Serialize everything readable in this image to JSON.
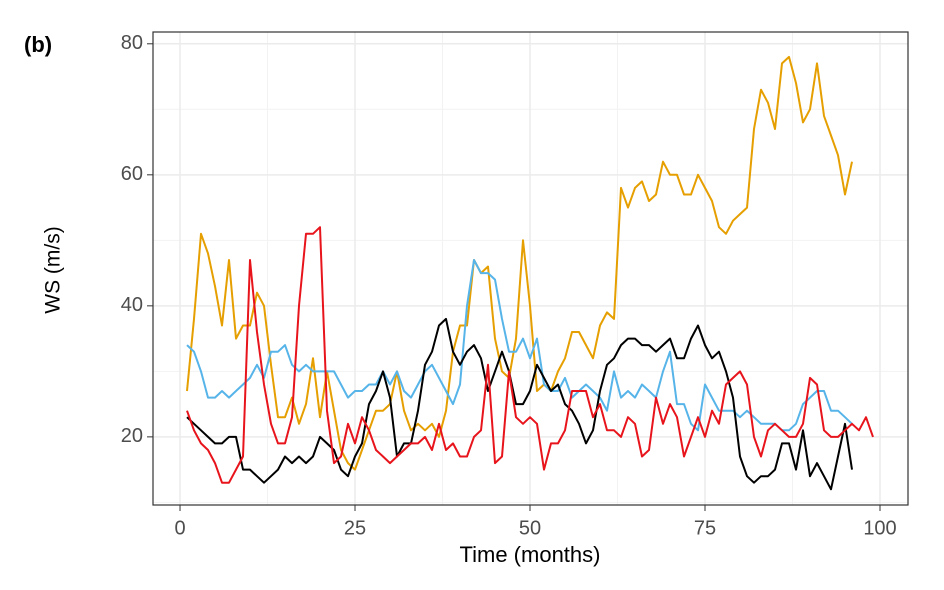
{
  "chart_data": {
    "type": "line",
    "panel_label": "(b)",
    "xlabel": "Time (months)",
    "ylabel": "WS (m/s)",
    "x": [
      1,
      2,
      3,
      4,
      5,
      6,
      7,
      8,
      9,
      10,
      11,
      12,
      13,
      14,
      15,
      16,
      17,
      18,
      19,
      20,
      21,
      22,
      23,
      24,
      25,
      26,
      27,
      28,
      29,
      30,
      31,
      32,
      33,
      34,
      35,
      36,
      37,
      38,
      39,
      40,
      41,
      42,
      43,
      44,
      45,
      46,
      47,
      48,
      49,
      50,
      51,
      52,
      53,
      54,
      55,
      56,
      57,
      58,
      59,
      60,
      61,
      62,
      63,
      64,
      65,
      66,
      67,
      68,
      69,
      70,
      71,
      72,
      73,
      74,
      75,
      76,
      77,
      78,
      79,
      80,
      81,
      82,
      83,
      84,
      85,
      86,
      87,
      88,
      89,
      90,
      91,
      92,
      93,
      94,
      95,
      96,
      97,
      98,
      99
    ],
    "series": [
      {
        "color": "#E69F00",
        "values": [
          27,
          38,
          51,
          48,
          43,
          37,
          47,
          35,
          37,
          37,
          42,
          40,
          31,
          23,
          23,
          26,
          22,
          25,
          32,
          23,
          30,
          24,
          18,
          16,
          15,
          18,
          21,
          24,
          24,
          25,
          30,
          24,
          21,
          22,
          21,
          22,
          20,
          24,
          33,
          37,
          37,
          47,
          45,
          46,
          35,
          30,
          29,
          35,
          50,
          40,
          27,
          28,
          27,
          30,
          32,
          36,
          36,
          34,
          32,
          37,
          39,
          38,
          58,
          55,
          58,
          59,
          56,
          57,
          62,
          60,
          60,
          57,
          57,
          60,
          58,
          56,
          52,
          51,
          53,
          54,
          55,
          67,
          73,
          71,
          67,
          77,
          78,
          74,
          68,
          70,
          77,
          69,
          66,
          63,
          57,
          62,
          null,
          null,
          null
        ]
      },
      {
        "color": "#56B4E9",
        "values": [
          34,
          33,
          30,
          26,
          26,
          27,
          26,
          27,
          28,
          29,
          31,
          29,
          33,
          33,
          34,
          31,
          30,
          31,
          30,
          30,
          30,
          30,
          28,
          26,
          27,
          27,
          28,
          28,
          30,
          28,
          30,
          27,
          26,
          28,
          30,
          31,
          29,
          27,
          25,
          28,
          40,
          47,
          45,
          45,
          44,
          38,
          33,
          33,
          35,
          32,
          35,
          28,
          27,
          27,
          29,
          26,
          27,
          28,
          27,
          26,
          24,
          30,
          26,
          27,
          26,
          28,
          27,
          26,
          30,
          33,
          25,
          25,
          22,
          21,
          28,
          26,
          24,
          24,
          24,
          23,
          24,
          23,
          22,
          22,
          22,
          21,
          21,
          22,
          25,
          26,
          27,
          27,
          24,
          24,
          23,
          22,
          null,
          null,
          null
        ]
      },
      {
        "color": "#000000",
        "values": [
          23,
          22,
          21,
          20,
          19,
          19,
          20,
          20,
          15,
          15,
          14,
          13,
          14,
          15,
          17,
          16,
          17,
          16,
          17,
          20,
          19,
          18,
          15,
          14,
          17,
          19,
          25,
          27,
          30,
          26,
          17,
          19,
          19,
          24,
          31,
          33,
          37,
          38,
          33,
          31,
          33,
          34,
          32,
          27,
          30,
          33,
          30,
          25,
          25,
          27,
          31,
          29,
          27,
          28,
          25,
          24,
          22,
          19,
          21,
          27,
          31,
          32,
          34,
          35,
          35,
          34,
          34,
          33,
          34,
          35,
          32,
          32,
          35,
          37,
          34,
          32,
          33,
          30,
          26,
          17,
          14,
          13,
          14,
          14,
          15,
          19,
          19,
          15,
          21,
          14,
          16,
          14,
          12,
          17,
          22,
          15,
          null,
          null,
          null
        ]
      },
      {
        "color": "#E8141C",
        "values": [
          24,
          21,
          19,
          18,
          16,
          13,
          13,
          15,
          17,
          47,
          36,
          28,
          22,
          19,
          19,
          23,
          40,
          51,
          51,
          52,
          24,
          16,
          17,
          22,
          19,
          23,
          21,
          18,
          17,
          16,
          17,
          18,
          19,
          19,
          20,
          18,
          22,
          18,
          19,
          17,
          17,
          20,
          21,
          31,
          16,
          17,
          30,
          23,
          22,
          23,
          22,
          15,
          19,
          19,
          21,
          27,
          27,
          27,
          23,
          25,
          21,
          21,
          20,
          23,
          22,
          17,
          18,
          26,
          22,
          25,
          23,
          17,
          20,
          23,
          20,
          24,
          22,
          28,
          29,
          30,
          28,
          20,
          17,
          21,
          22,
          21,
          20,
          20,
          22,
          29,
          28,
          21,
          20,
          20,
          21,
          22,
          21,
          23,
          20
        ]
      }
    ],
    "xlim": [
      -3.86,
      104
    ],
    "ylim": [
      9.6,
      81.8
    ],
    "xticks": [
      0,
      25,
      50,
      75,
      100
    ],
    "yticks": [
      20,
      40,
      60,
      80
    ],
    "xminor": [
      12.5,
      37.5,
      62.5,
      87.5
    ],
    "yminor": [
      10,
      30,
      50,
      70
    ],
    "grid": true
  }
}
